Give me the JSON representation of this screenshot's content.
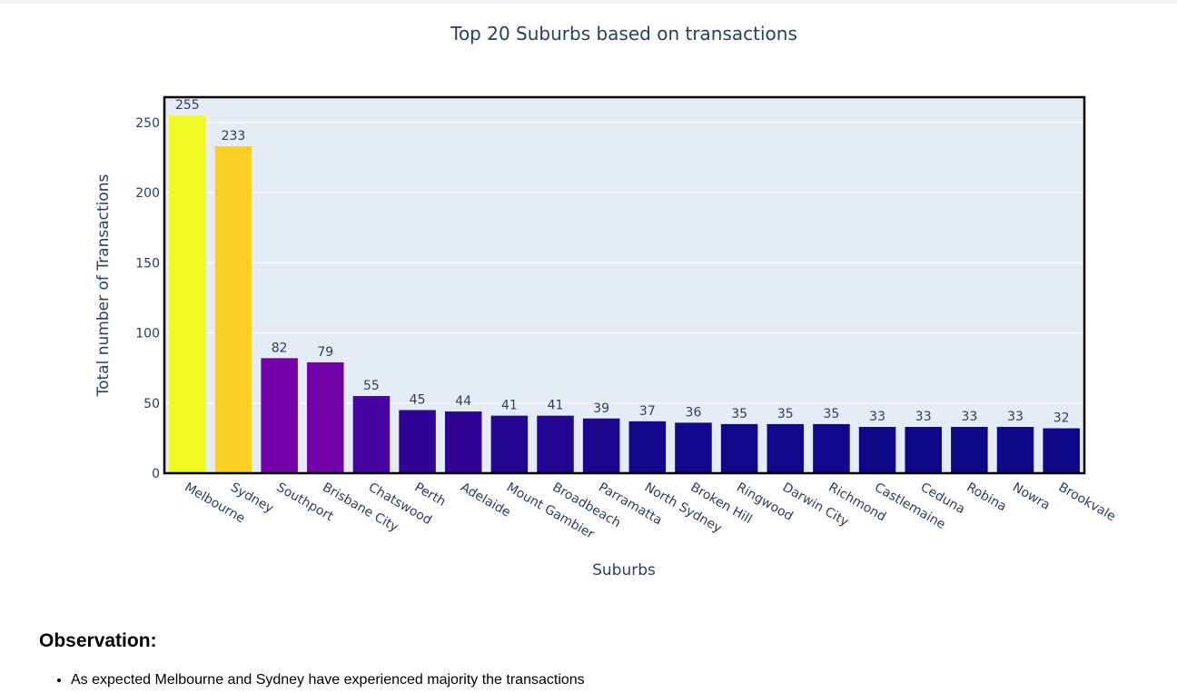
{
  "chart_data": {
    "type": "bar",
    "title": "Top 20 Suburbs based on transactions",
    "xlabel": "Suburbs",
    "ylabel": "Total number of Transactions",
    "categories": [
      "Melbourne",
      "Sydney",
      "Southport",
      "Brisbane City",
      "Chatswood",
      "Perth",
      "Adelaide",
      "Mount Gambier",
      "Broadbeach",
      "Parramatta",
      "North Sydney",
      "Broken Hill",
      "Ringwood",
      "Darwin City",
      "Richmond",
      "Castlemaine",
      "Ceduna",
      "Robina",
      "Nowra",
      "Brookvale"
    ],
    "values": [
      255,
      233,
      82,
      79,
      55,
      45,
      44,
      41,
      41,
      39,
      37,
      36,
      35,
      35,
      35,
      33,
      33,
      33,
      33,
      32
    ],
    "colors": [
      "#f0f921",
      "#fccf25",
      "#7201a8",
      "#7201a8",
      "#46039f",
      "#2f0596",
      "#2f0596",
      "#220690",
      "#220690",
      "#1b068d",
      "#14078c",
      "#14078c",
      "#10078a",
      "#10078a",
      "#10078a",
      "#0d0887",
      "#0d0887",
      "#0d0887",
      "#0d0887",
      "#0d0887"
    ],
    "ylim": [
      0,
      268
    ],
    "yticks": [
      0,
      50,
      100,
      150,
      200,
      250
    ],
    "grid": true,
    "plot_background": "#e5ecf6",
    "text_color": "#2a3f5f"
  },
  "observation": {
    "heading": "Observation:",
    "items": [
      "As expected Melbourne and Sydney have experienced majority the transactions"
    ]
  }
}
